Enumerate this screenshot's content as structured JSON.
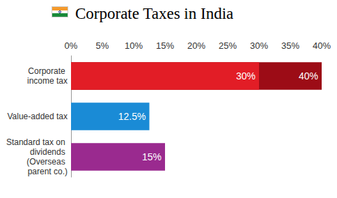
{
  "chart_data": {
    "type": "bar",
    "orientation": "horizontal",
    "title": "Corporate Taxes in India",
    "categories": [
      "Corporate income tax",
      "Value-added tax",
      "Standard tax on dividends (Overseas parent co.)"
    ],
    "series": [
      {
        "color": "#9c0c16",
        "values": [
          40,
          null,
          null
        ],
        "value_labels": [
          "40%",
          null,
          null
        ]
      },
      {
        "colors": [
          "#e21d26",
          "#1a8bd6",
          "#9a2a8f"
        ],
        "values": [
          30,
          12.5,
          15
        ],
        "value_labels": [
          "30%",
          "12.5%",
          "15%"
        ]
      }
    ],
    "xlim": [
      0,
      40
    ],
    "xticks": [
      {
        "value": 0,
        "label": "0%"
      },
      {
        "value": 5,
        "label": "5%"
      },
      {
        "value": 10,
        "label": "10%"
      },
      {
        "value": 15,
        "label": "15%"
      },
      {
        "value": 20,
        "label": "20%"
      },
      {
        "value": 25,
        "label": "25%"
      },
      {
        "value": 30,
        "label": "30%"
      },
      {
        "value": 35,
        "label": "35%"
      },
      {
        "value": 40,
        "label": "40%"
      }
    ],
    "grid": false,
    "stacked": false,
    "data_labels": true
  }
}
